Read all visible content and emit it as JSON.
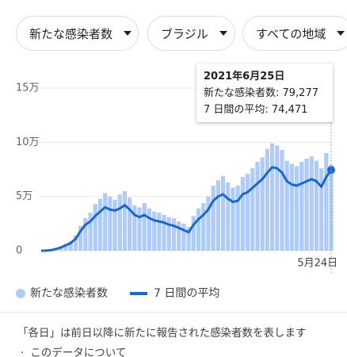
{
  "filters": [
    "新たな感染者数",
    "ブラジル",
    "すべての地域"
  ],
  "footnote": "「各日」は前日以降に新たに報告された感染者数を表します",
  "link": "このデータについて",
  "chart_data": {
    "type": "bar",
    "categories": [
      null,
      null,
      null,
      null,
      null,
      null,
      null,
      null,
      null,
      null,
      null,
      null,
      null,
      null,
      null,
      null,
      null,
      null,
      null,
      null,
      null,
      null,
      null,
      null,
      null,
      null,
      null,
      null,
      null,
      null,
      null,
      null,
      null,
      null,
      null,
      null,
      null,
      null,
      null,
      null,
      null,
      null,
      null,
      null,
      null,
      null,
      null,
      null,
      null,
      null,
      null,
      null,
      null,
      "5月24日",
      null,
      null,
      null,
      null,
      null,
      null
    ],
    "series": [
      {
        "name": "新たな感染者数",
        "type": "bar",
        "color": "#aecbfa",
        "values": [
          0,
          200,
          700,
          2000,
          4000,
          6500,
          9000,
          14000,
          23000,
          30000,
          35000,
          43000,
          48000,
          53000,
          50000,
          47000,
          52000,
          55000,
          49000,
          42000,
          40000,
          44000,
          39000,
          36000,
          35000,
          33000,
          31000,
          30000,
          27000,
          25000,
          22000,
          32000,
          39000,
          44000,
          50000,
          60000,
          65000,
          69000,
          63000,
          58000,
          60000,
          68000,
          71000,
          76000,
          82000,
          86000,
          94000,
          99000,
          97000,
          93000,
          83000,
          80000,
          78000,
          82000,
          85000,
          87000,
          83000,
          76000,
          90000,
          79277
        ]
      },
      {
        "name": "7 日間の平均",
        "type": "line",
        "color": "#1967d2",
        "values": [
          0,
          100,
          500,
          1500,
          3000,
          5000,
          7000,
          11000,
          18000,
          24000,
          27000,
          32000,
          36000,
          40000,
          38000,
          37000,
          39000,
          42000,
          38000,
          33000,
          31000,
          33000,
          30000,
          28000,
          27000,
          26000,
          24000,
          23000,
          21000,
          19000,
          17000,
          24000,
          29000,
          33000,
          38000,
          46000,
          50000,
          52000,
          48000,
          45000,
          46000,
          52000,
          54000,
          58000,
          62000,
          66000,
          72000,
          77000,
          76000,
          72000,
          64000,
          61000,
          60000,
          62000,
          64000,
          66000,
          64000,
          59000,
          68000,
          74471
        ]
      }
    ],
    "ylim": [
      0,
      150000
    ],
    "yticks": [
      0,
      {
        "value": 50000,
        "label": "5万"
      },
      {
        "value": 100000,
        "label": "10万"
      },
      {
        "value": 150000,
        "label": "15万"
      }
    ],
    "grid": true,
    "tooltip": {
      "date": "2021年6月25日",
      "lines": [
        "新たな感染者数: 79,277",
        "7 日間の平均: 74,471"
      ]
    }
  }
}
